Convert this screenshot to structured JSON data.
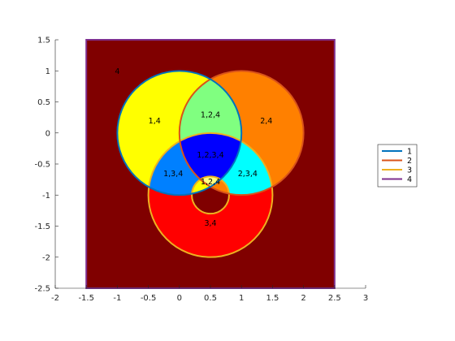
{
  "chart_data": {
    "type": "venn",
    "xlim": [
      -2,
      3
    ],
    "ylim": [
      -2.5,
      1.5
    ],
    "x_ticks": [
      -2,
      -1.5,
      -1,
      -0.5,
      0,
      0.5,
      1,
      1.5,
      2,
      2.5,
      3
    ],
    "y_ticks": [
      1.5,
      1,
      0.5,
      0,
      -0.5,
      -1,
      -1.5,
      -2,
      -2.5
    ],
    "x_tick_labels": [
      "-2",
      "-1.5",
      "-1",
      "-0.5",
      "0",
      "0.5",
      "1",
      "1.5",
      "2",
      "2.5",
      "3"
    ],
    "y_tick_labels": [
      "1.5",
      "1",
      "0.5",
      "0",
      "-0.5",
      "-1",
      "-1.5",
      "-2",
      "-2.5"
    ],
    "grid": false,
    "legend_placement": "east-outside",
    "sets": [
      {
        "name": "1",
        "shape": "circle",
        "cx": 0,
        "cy": 0,
        "r": 1,
        "color": "#0072BD"
      },
      {
        "name": "2",
        "shape": "circle",
        "cx": 1,
        "cy": 0,
        "r": 1,
        "color": "#D95319"
      },
      {
        "name": "3",
        "shape": "annulus",
        "cx": 0.5,
        "cy": -1,
        "r_outer": 1,
        "r_inner": 0.3,
        "color": "#EDB120"
      },
      {
        "name": "4",
        "shape": "rectangle",
        "x": [
          -1.5,
          2.5
        ],
        "y": [
          -2.5,
          1.5
        ],
        "color": "#7E2F8E"
      }
    ],
    "regions": [
      {
        "label": "4",
        "x": -1.0,
        "y": 1.0,
        "fill": "#800000"
      },
      {
        "label": "1,4",
        "x": -0.4,
        "y": 0.2,
        "fill": "#FFFF00"
      },
      {
        "label": "2,4",
        "x": 1.4,
        "y": 0.2,
        "fill": "#FF8000"
      },
      {
        "label": "1,2,4",
        "x": 0.5,
        "y": 0.3,
        "fill": "#80FF80"
      },
      {
        "label": "1,2,3,4",
        "x": 0.5,
        "y": -0.35,
        "fill": "#0000FF"
      },
      {
        "label": "1,3,4",
        "x": -0.1,
        "y": -0.65,
        "fill": "#0080FF"
      },
      {
        "label": "2,3,4",
        "x": 1.1,
        "y": -0.65,
        "fill": "#00FFFF"
      },
      {
        "label": "1,2,4",
        "x": 0.5,
        "y": -0.78,
        "fill": "#FFFF80"
      },
      {
        "label": "3,4",
        "x": 0.5,
        "y": -1.45,
        "fill": "#FF0000"
      }
    ]
  }
}
